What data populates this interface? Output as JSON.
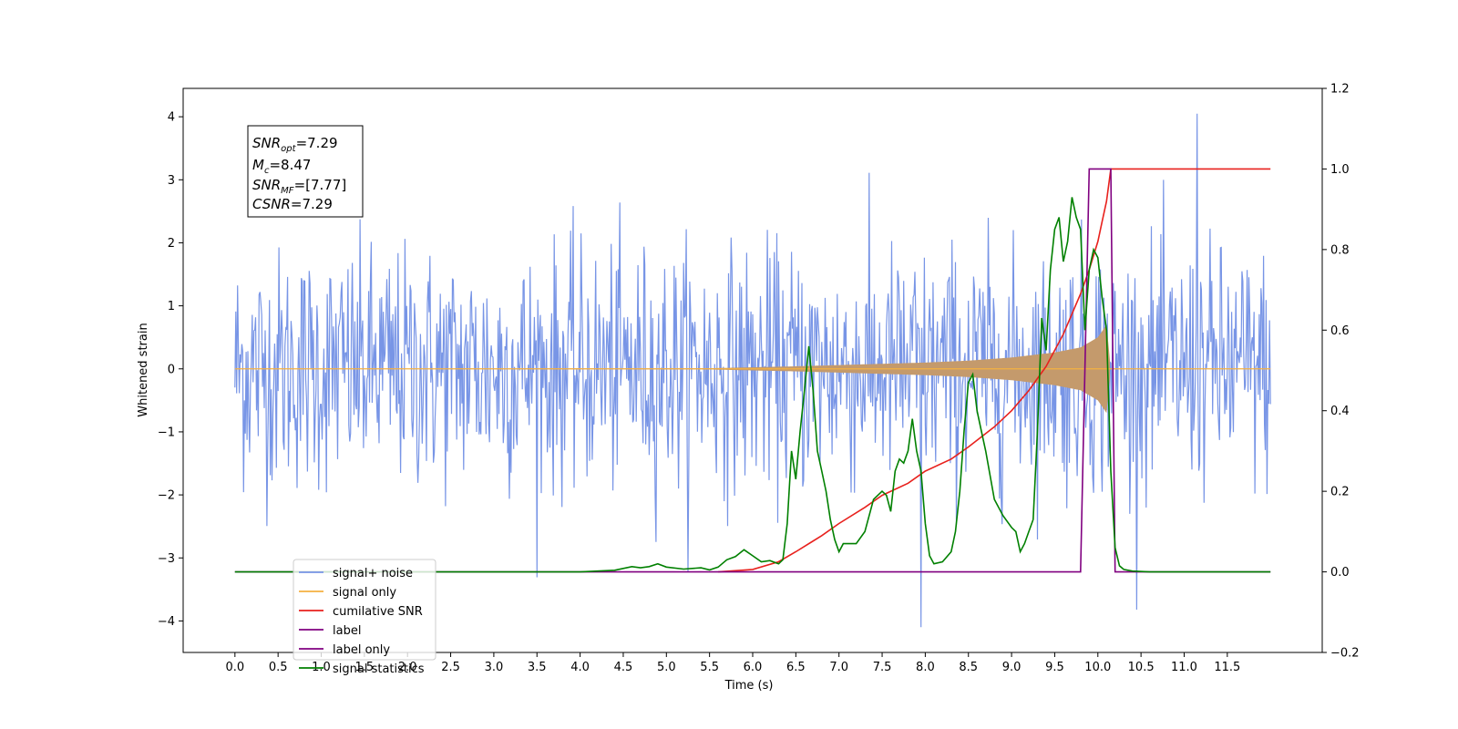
{
  "chart_data": {
    "type": "line",
    "title": "",
    "xlabel": "Time (s)",
    "ylabel": "Whitened strain",
    "y2label": "",
    "xlim": [
      -0.6,
      12.6
    ],
    "ylim": [
      -4.5,
      4.45
    ],
    "y2lim": [
      -0.2,
      1.2
    ],
    "x_ticks": [
      "0.0",
      "0.5",
      "1.0",
      "1.5",
      "2.0",
      "2.5",
      "3.0",
      "3.5",
      "4.0",
      "4.5",
      "5.0",
      "5.5",
      "6.0",
      "6.5",
      "7.0",
      "7.5",
      "8.0",
      "8.5",
      "9.0",
      "9.5",
      "10.0",
      "10.5",
      "11.0",
      "11.5"
    ],
    "y_ticks": [
      "4",
      "3",
      "2",
      "1",
      "0",
      "−1",
      "−2",
      "−3",
      "−4"
    ],
    "y2_ticks": [
      "1.2",
      "1.0",
      "0.8",
      "0.6",
      "0.4",
      "0.2",
      "0.0",
      "−0.2"
    ],
    "grid": false,
    "legend_position": "lower-left",
    "annotation": {
      "snr_opt": {
        "base": "SNR",
        "sub": "opt",
        "value": "=7.29"
      },
      "mc": {
        "base": "M",
        "sub": "c",
        "value": "=8.47"
      },
      "snr_mf": {
        "base": "SNR",
        "sub": "MF",
        "value": "=[7.77]"
      },
      "csnr": {
        "base": "CSNR",
        "value": "=7.29"
      }
    },
    "series": [
      {
        "name": "signal+ noise",
        "axis": "left",
        "color": "#7895e6",
        "x_range": [
          0,
          12
        ],
        "std": 0.95,
        "extremes": {
          "max": 4.05,
          "min": -4.1
        }
      },
      {
        "name": "signal only",
        "axis": "left",
        "color": "#f5b041",
        "fill_color": "#c49a6c",
        "t_coalescence": 10.15,
        "x": [
          0,
          5.5,
          6.5,
          7.5,
          8.0,
          8.5,
          9.0,
          9.5,
          9.8,
          10.0,
          10.1,
          10.15,
          12.0
        ],
        "amplitude": [
          0.0,
          0.01,
          0.04,
          0.08,
          0.1,
          0.13,
          0.18,
          0.26,
          0.34,
          0.5,
          0.7,
          0.0,
          0.0
        ]
      },
      {
        "name": "cumilative SNR",
        "axis": "right",
        "color": "#e8211d",
        "x": [
          5.6,
          6.0,
          6.3,
          6.5,
          6.8,
          7.0,
          7.3,
          7.5,
          7.8,
          8.0,
          8.3,
          8.5,
          8.8,
          9.0,
          9.2,
          9.4,
          9.6,
          9.8,
          9.9,
          10.0,
          10.05,
          10.1,
          10.15,
          12.0
        ],
        "y": [
          0.0,
          0.006,
          0.025,
          0.05,
          0.09,
          0.12,
          0.16,
          0.19,
          0.22,
          0.25,
          0.28,
          0.31,
          0.36,
          0.4,
          0.45,
          0.51,
          0.59,
          0.69,
          0.75,
          0.82,
          0.87,
          0.92,
          1.0,
          1.0
        ]
      },
      {
        "name": "label",
        "axis": "right",
        "color": "#800080",
        "x": [
          0.0,
          9.8,
          9.9,
          10.15,
          10.2,
          12.0
        ],
        "y": [
          0.0,
          0.0,
          1.0,
          1.0,
          0.0,
          0.0
        ]
      },
      {
        "name": "label only",
        "axis": "right",
        "color": "#800080",
        "x": [],
        "y": []
      },
      {
        "name": "signal statistics",
        "axis": "right",
        "color": "#008000",
        "x": [
          0.0,
          4.0,
          4.4,
          4.6,
          4.7,
          4.8,
          4.9,
          5.0,
          5.2,
          5.4,
          5.5,
          5.6,
          5.7,
          5.8,
          5.9,
          6.0,
          6.1,
          6.2,
          6.3,
          6.35,
          6.4,
          6.45,
          6.5,
          6.55,
          6.6,
          6.65,
          6.7,
          6.75,
          6.8,
          6.85,
          6.9,
          6.95,
          7.0,
          7.05,
          7.1,
          7.2,
          7.3,
          7.4,
          7.5,
          7.55,
          7.6,
          7.65,
          7.7,
          7.75,
          7.8,
          7.85,
          7.9,
          7.95,
          8.0,
          8.05,
          8.1,
          8.2,
          8.3,
          8.35,
          8.4,
          8.45,
          8.5,
          8.55,
          8.6,
          8.65,
          8.7,
          8.8,
          8.9,
          9.0,
          9.05,
          9.1,
          9.15,
          9.2,
          9.25,
          9.3,
          9.35,
          9.4,
          9.45,
          9.5,
          9.55,
          9.6,
          9.65,
          9.7,
          9.75,
          9.8,
          9.85,
          9.9,
          9.95,
          10.0,
          10.05,
          10.1,
          10.15,
          10.2,
          10.25,
          10.3,
          10.4,
          10.6,
          11.0,
          12.0
        ],
        "y": [
          0.0,
          0.0,
          0.004,
          0.013,
          0.01,
          0.013,
          0.02,
          0.012,
          0.007,
          0.01,
          0.005,
          0.012,
          0.03,
          0.038,
          0.055,
          0.04,
          0.025,
          0.028,
          0.02,
          0.03,
          0.12,
          0.3,
          0.23,
          0.35,
          0.45,
          0.56,
          0.45,
          0.3,
          0.25,
          0.2,
          0.13,
          0.08,
          0.05,
          0.07,
          0.07,
          0.07,
          0.1,
          0.18,
          0.2,
          0.19,
          0.15,
          0.25,
          0.28,
          0.27,
          0.3,
          0.38,
          0.3,
          0.25,
          0.12,
          0.04,
          0.02,
          0.025,
          0.05,
          0.1,
          0.2,
          0.35,
          0.47,
          0.49,
          0.4,
          0.35,
          0.3,
          0.18,
          0.14,
          0.11,
          0.1,
          0.05,
          0.07,
          0.1,
          0.13,
          0.35,
          0.63,
          0.55,
          0.75,
          0.85,
          0.88,
          0.77,
          0.82,
          0.93,
          0.88,
          0.85,
          0.6,
          0.75,
          0.8,
          0.78,
          0.68,
          0.6,
          0.25,
          0.06,
          0.015,
          0.006,
          0.002,
          0.0,
          0.0,
          0.0
        ]
      }
    ],
    "legend": [
      "signal+ noise",
      "signal only",
      "cumilative SNR",
      "label",
      "label only",
      "signal statistics"
    ]
  }
}
